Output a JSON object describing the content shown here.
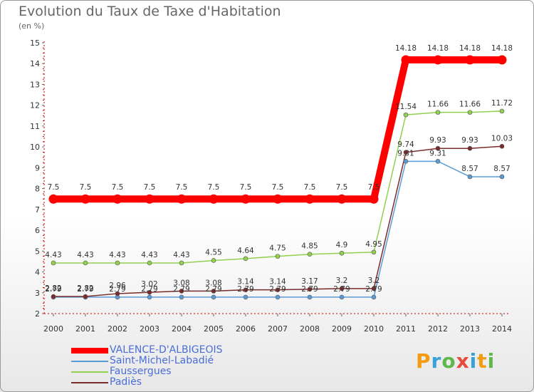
{
  "chart_data": {
    "type": "line",
    "title": "Evolution du Taux de Taxe d'Habitation",
    "unit": "(en %)",
    "x": [
      "2000",
      "2001",
      "2002",
      "2003",
      "2004",
      "2005",
      "2006",
      "2007",
      "2008",
      "2009",
      "2010",
      "2011",
      "2012",
      "2013",
      "2014"
    ],
    "ylim": [
      2,
      15
    ],
    "yticks": [
      2,
      3,
      4,
      5,
      6,
      7,
      8,
      9,
      10,
      11,
      12,
      13,
      14,
      15
    ],
    "grid": false,
    "legend_position": "bottom-left",
    "series": [
      {
        "name": "VALENCE-D'ALBIGEOIS",
        "color": "#ff0000",
        "values": [
          7.5,
          7.5,
          7.5,
          7.5,
          7.5,
          7.5,
          7.5,
          7.5,
          7.5,
          7.5,
          7.5,
          14.18,
          14.18,
          14.18,
          14.18
        ],
        "labels": [
          "7.5",
          "7.5",
          "7.5",
          "7.5",
          "7.5",
          "7.5",
          "7.5",
          "7.5",
          "7.5",
          "7.5",
          "7.5",
          "14.18",
          "14.18",
          "14.18",
          "14.18"
        ]
      },
      {
        "name": "Saint-Michel-Labadié",
        "color": "#5b9bd5",
        "values": [
          2.79,
          2.79,
          2.79,
          2.79,
          2.79,
          2.79,
          2.79,
          2.79,
          2.79,
          2.79,
          2.79,
          9.31,
          9.31,
          8.57,
          8.57
        ],
        "labels": [
          "2.79",
          "2.79",
          "2.79",
          "2.79",
          "2.79",
          "2.79",
          "2.79",
          "2.79",
          "2.79",
          "2.79",
          "2.79",
          "9.31",
          "9.31",
          "8.57",
          "8.57"
        ]
      },
      {
        "name": "Faussergues",
        "color": "#92d050",
        "values": [
          4.43,
          4.43,
          4.43,
          4.43,
          4.43,
          4.55,
          4.64,
          4.75,
          4.85,
          4.9,
          4.95,
          11.54,
          11.66,
          11.66,
          11.72
        ],
        "labels": [
          "4.43",
          "4.43",
          "4.43",
          "4.43",
          "4.43",
          "4.55",
          "4.64",
          "4.75",
          "4.85",
          "4.9",
          "4.95",
          "11.54",
          "11.66",
          "11.66",
          "11.72"
        ]
      },
      {
        "name": "Padiès",
        "color": "#7a2b2b",
        "values": [
          2.82,
          2.82,
          2.96,
          3.02,
          3.08,
          3.08,
          3.14,
          3.14,
          3.17,
          3.2,
          3.2,
          9.74,
          9.93,
          9.93,
          10.03
        ],
        "labels": [
          "2.82",
          "2.82",
          "2.96",
          "3.02",
          "3.08",
          "3.08",
          "3.14",
          "3.14",
          "3.17",
          "3.2",
          "3.2",
          "9.74",
          "9.93",
          "9.93",
          "10.03"
        ]
      }
    ]
  },
  "logo": {
    "text": "Proxiti"
  }
}
